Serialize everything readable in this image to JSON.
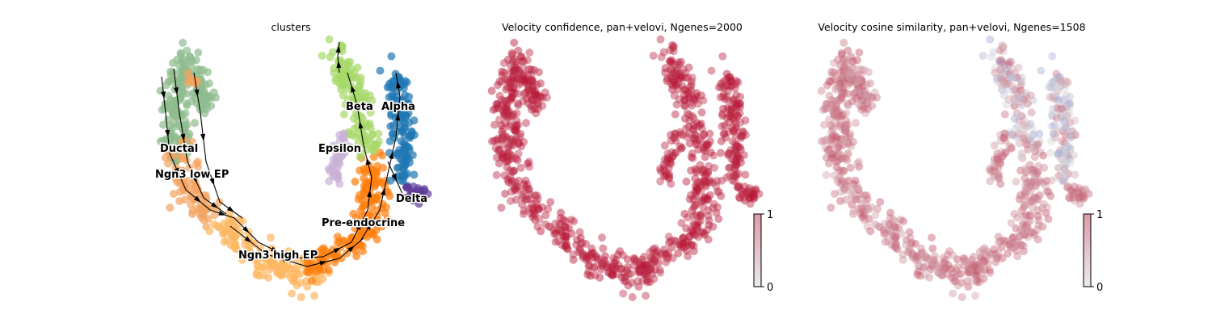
{
  "chart_data": [
    {
      "type": "scatter",
      "title": "clusters",
      "series": [
        {
          "name": "Ductal",
          "color": "#8fbc8f"
        },
        {
          "name": "Ngn3 low EP",
          "color": "#f4a460"
        },
        {
          "name": "Ngn3 high EP",
          "color": "#fdb863"
        },
        {
          "name": "Pre-endocrine",
          "color": "#ff7f0e"
        },
        {
          "name": "Beta",
          "color": "#a6d96a"
        },
        {
          "name": "Alpha",
          "color": "#1f77b4"
        },
        {
          "name": "Delta",
          "color": "#5e3c99"
        },
        {
          "name": "Epsilon",
          "color": "#c9b0d6"
        }
      ],
      "labels": [
        "Ductal",
        "Ngn3 low EP",
        "Ngn3 high EP",
        "Pre-endocrine",
        "Beta",
        "Alpha",
        "Delta",
        "Epsilon"
      ],
      "overlay": "velocity streamlines with arrows"
    },
    {
      "type": "scatter",
      "title": "Velocity confidence, pan+velovi, Ngenes=2000",
      "colormap": "coolwarm",
      "colorbar": {
        "min": 0,
        "max": 1,
        "ticks": [
          "0",
          "1"
        ]
      },
      "dominant_color": "#c0282d"
    },
    {
      "type": "scatter",
      "title": "Velocity cosine similarity, pan+velovi, Ngenes=1508",
      "colormap": "coolwarm",
      "colorbar": {
        "min": 0,
        "max": 1,
        "ticks": [
          "0",
          "1"
        ]
      },
      "dominant_color": "#e8957a"
    }
  ]
}
